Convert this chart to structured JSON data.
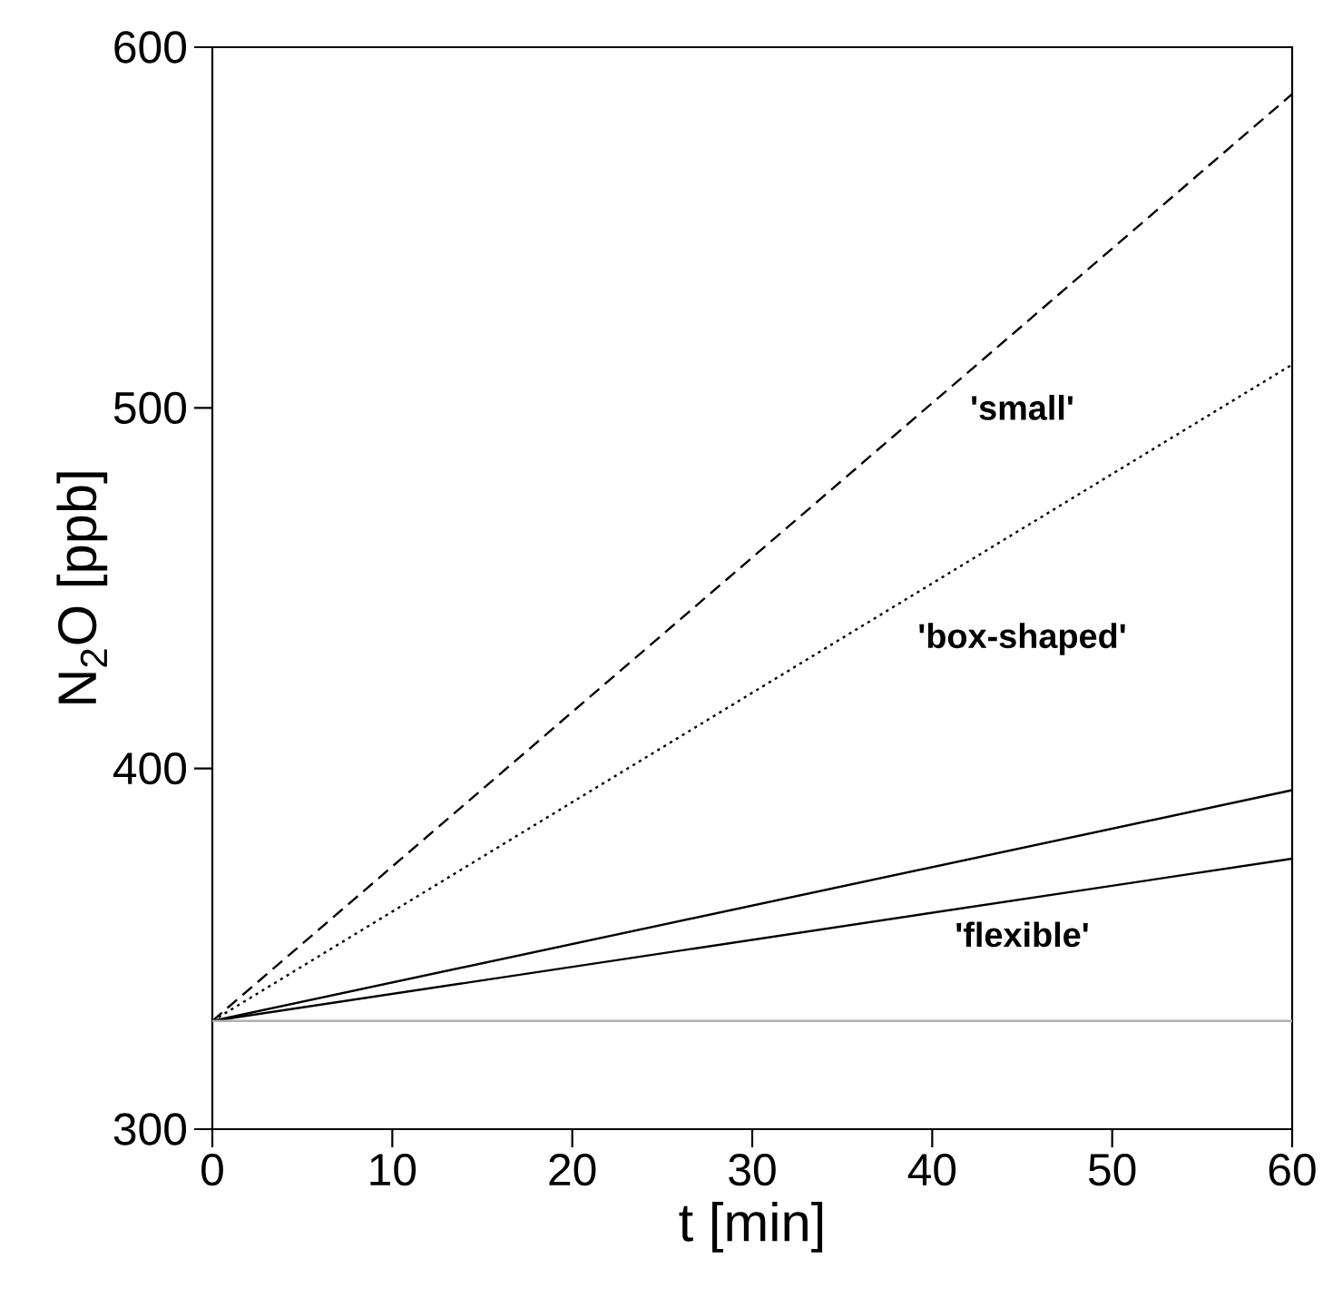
{
  "chart_data": {
    "type": "line",
    "xlabel": "t [min]",
    "ylabel": "N$_{2}$O [ppb]",
    "xlim": [
      0,
      60
    ],
    "ylim": [
      300,
      600
    ],
    "xticks": [
      0,
      10,
      20,
      30,
      40,
      50,
      60
    ],
    "yticks": [
      300,
      400,
      500,
      600
    ],
    "grid": false,
    "marker": "none",
    "x": [
      0,
      60
    ],
    "series": [
      {
        "values": [
          330,
          587
        ],
        "color": "#000000",
        "line_style": "dashed"
      },
      {
        "values": [
          330,
          512
        ],
        "color": "#000000",
        "line_style": "dotted"
      },
      {
        "values": [
          330,
          394
        ],
        "color": "#000000",
        "line_style": "solid"
      },
      {
        "values": [
          330,
          375
        ],
        "color": "#000000",
        "line_style": "solid"
      },
      {
        "values": [
          330,
          330
        ],
        "color": "#b0b0b0",
        "line_style": "solid"
      }
    ],
    "annotations": [
      "'small'",
      "'box-shaped'",
      "'flexible'"
    ]
  }
}
